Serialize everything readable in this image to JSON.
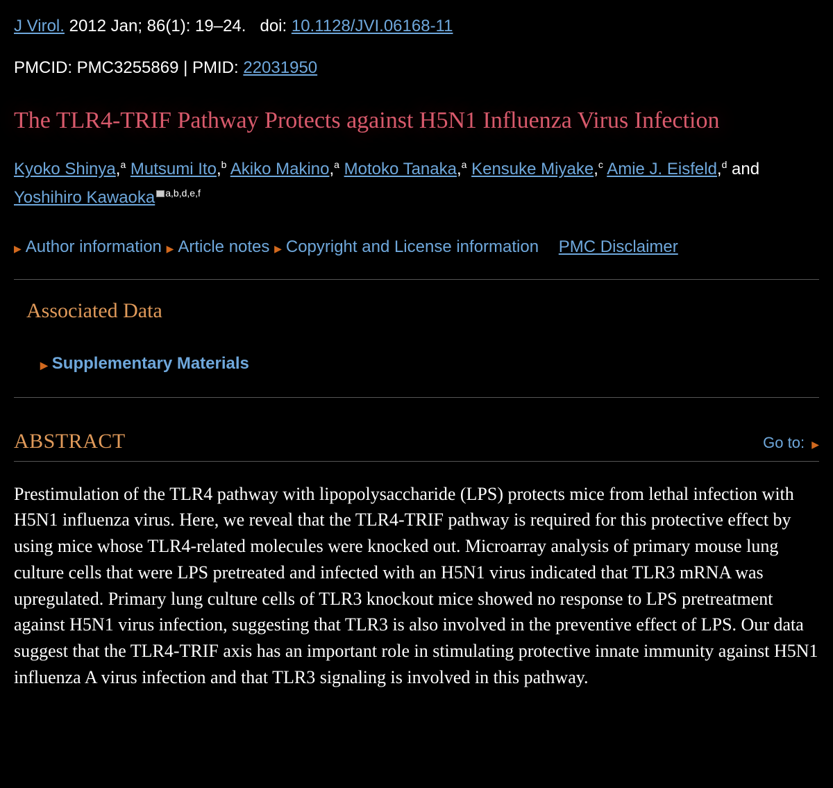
{
  "citation": {
    "journal": "J Virol.",
    "issue": " 2012 Jan; 86(1): 19–24.",
    "doi_label": "doi: ",
    "doi": "10.1128/JVI.06168-11"
  },
  "ids": {
    "pmcid_label": "PMCID: ",
    "pmcid": "PMC3255869",
    "sep": " | ",
    "pmid_label": "PMID: ",
    "pmid": "22031950"
  },
  "title": "The TLR4-TRIF Pathway Protects against H5N1 Influenza Virus Infection",
  "authors": [
    {
      "name": "Kyoko Shinya",
      "aff": "a",
      "suffix": ","
    },
    {
      "name": "Mutsumi Ito",
      "aff": "b",
      "suffix": ","
    },
    {
      "name": "Akiko Makino",
      "aff": "a",
      "suffix": ","
    },
    {
      "name": "Motoko Tanaka",
      "aff": "a",
      "suffix": ","
    },
    {
      "name": "Kensuke Miyake",
      "aff": "c",
      "suffix": ","
    },
    {
      "name": "Amie J. Eisfeld",
      "aff": "d",
      "suffix": ","
    }
  ],
  "authors_and": " and ",
  "last_author": {
    "name": "Yoshihiro Kawaoka",
    "aff": "a,b,d,e,f"
  },
  "expand": {
    "author_info": "Author information",
    "article_notes": "Article notes",
    "copyright": "Copyright and License information",
    "disclaimer": "PMC Disclaimer"
  },
  "associated": {
    "heading": "Associated Data",
    "supplementary": "Supplementary Materials"
  },
  "abstract": {
    "heading": "ABSTRACT",
    "goto": "Go to:",
    "text": "Prestimulation of the TLR4 pathway with lipopolysaccharide (LPS) protects mice from lethal infection with H5N1 influenza virus. Here, we reveal that the TLR4-TRIF pathway is required for this protective effect by using mice whose TLR4-related molecules were knocked out. Microarray analysis of primary mouse lung culture cells that were LPS pretreated and infected with an H5N1 virus indicated that TLR3 mRNA was upregulated. Primary lung culture cells of TLR3 knockout mice showed no response to LPS pretreatment against H5N1 virus infection, suggesting that TLR3 is also involved in the preventive effect of LPS. Our data suggest that the TLR4-TRIF axis has an important role in stimulating protective innate immunity against H5N1 influenza A virus infection and that TLR3 signaling is involved in this pathway."
  },
  "colors": {
    "background": "#000000",
    "text": "#ffffff",
    "link": "#6fa8dc",
    "heading_accent": "#e09a5a",
    "title_color": "#d85a6c",
    "caret": "#d2691e",
    "rule": "#555555"
  }
}
